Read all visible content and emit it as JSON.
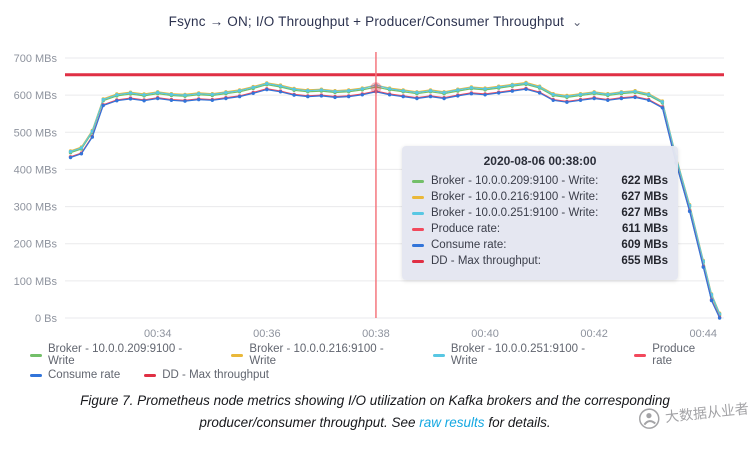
{
  "page": {
    "title": "Fsync → ON; I/O Throughput + Producer/Consumer Throughput",
    "chevron": "⌄"
  },
  "chart_data": {
    "type": "line",
    "title": "Fsync → ON; I/O Throughput + Producer/Consumer Throughput",
    "xlabel": "",
    "ylabel": "",
    "ylim": [
      0,
      700
    ],
    "grid": true,
    "legend_position": "bottom",
    "y_tick_values": [
      0,
      100,
      200,
      300,
      400,
      500,
      600,
      700
    ],
    "y_tick_labels": [
      "0 Bs",
      "100 MBs",
      "200 MBs",
      "300 MBs",
      "400 MBs",
      "500 MBs",
      "600 MBs",
      "700 MBs"
    ],
    "x_tick_values": [
      34,
      36,
      38,
      40,
      42,
      44
    ],
    "x_tick_labels": [
      "00:34",
      "00:36",
      "00:38",
      "00:40",
      "00:42",
      "00:44"
    ],
    "x_unit": "time HH:MM",
    "x_minutes": [
      32.4,
      32.6,
      32.8,
      33.0,
      33.25,
      33.5,
      33.75,
      34.0,
      34.25,
      34.5,
      34.75,
      35.0,
      35.25,
      35.5,
      35.75,
      36.0,
      36.25,
      36.5,
      36.75,
      37.0,
      37.25,
      37.5,
      37.75,
      38.0,
      38.25,
      38.5,
      38.75,
      39.0,
      39.25,
      39.5,
      39.75,
      40.0,
      40.25,
      40.5,
      40.75,
      41.0,
      41.25,
      41.5,
      41.75,
      42.0,
      42.25,
      42.5,
      42.75,
      43.0,
      43.25,
      43.5,
      43.75,
      44.0,
      44.15,
      44.3
    ],
    "series": [
      {
        "name": "Broker - 10.0.0.209:9100 - Write",
        "color": "#73BF69",
        "values": [
          445,
          455,
          500,
          585,
          598,
          603,
          598,
          604,
          599,
          597,
          601,
          599,
          604,
          609,
          618,
          628,
          622,
          613,
          609,
          611,
          607,
          609,
          614,
          622,
          614,
          609,
          604,
          609,
          604,
          611,
          617,
          614,
          619,
          624,
          629,
          619,
          599,
          594,
          599,
          604,
          599,
          604,
          607,
          599,
          579,
          430,
          300,
          150,
          60,
          8
        ]
      },
      {
        "name": "Broker - 10.0.0.216:9100 - Write",
        "color": "#EAB839",
        "values": [
          450,
          460,
          505,
          590,
          603,
          608,
          603,
          609,
          604,
          602,
          606,
          604,
          609,
          614,
          623,
          633,
          627,
          618,
          614,
          616,
          612,
          614,
          619,
          627,
          619,
          614,
          609,
          614,
          609,
          616,
          622,
          619,
          624,
          629,
          634,
          624,
          604,
          599,
          604,
          609,
          604,
          609,
          612,
          604,
          584,
          435,
          305,
          155,
          65,
          13
        ]
      },
      {
        "name": "Broker - 10.0.0.251:9100 - Write",
        "color": "#58C7E3",
        "values": [
          448,
          458,
          503,
          588,
          601,
          606,
          601,
          607,
          602,
          600,
          604,
          602,
          607,
          612,
          621,
          631,
          625,
          616,
          612,
          614,
          610,
          612,
          617,
          627,
          617,
          612,
          607,
          612,
          607,
          614,
          620,
          617,
          622,
          627,
          632,
          622,
          602,
          597,
          602,
          607,
          602,
          607,
          610,
          602,
          582,
          433,
          303,
          153,
          63,
          11
        ]
      },
      {
        "name": "Produce rate",
        "color": "#F2495C",
        "values": [
          434,
          444,
          489,
          574,
          587,
          592,
          587,
          593,
          588,
          586,
          590,
          588,
          593,
          598,
          607,
          617,
          611,
          602,
          598,
          600,
          596,
          598,
          603,
          611,
          603,
          598,
          593,
          598,
          593,
          600,
          606,
          603,
          608,
          613,
          618,
          608,
          588,
          583,
          588,
          593,
          588,
          593,
          596,
          588,
          568,
          419,
          289,
          139,
          49,
          2
        ]
      },
      {
        "name": "Consume rate",
        "color": "#3274D9",
        "values": [
          432,
          442,
          487,
          572,
          585,
          590,
          585,
          591,
          586,
          584,
          588,
          586,
          591,
          596,
          605,
          615,
          609,
          600,
          596,
          598,
          594,
          596,
          601,
          609,
          601,
          596,
          591,
          596,
          591,
          598,
          604,
          601,
          606,
          611,
          616,
          606,
          586,
          581,
          586,
          591,
          586,
          591,
          594,
          586,
          566,
          417,
          287,
          137,
          47,
          0
        ]
      }
    ],
    "reference_lines": [
      {
        "name": "DD - Max throughput",
        "color": "#E02F44",
        "value": 655
      }
    ],
    "crosshair": {
      "x": 38,
      "color": "#F4777F"
    },
    "hover_point": {
      "x": 38,
      "value": 620
    }
  },
  "tooltip": {
    "timestamp": "2020-08-06 00:38:00",
    "rows": [
      {
        "label": "Broker - 10.0.0.209:9100 - Write:",
        "value": "622 MBs",
        "color": "#73BF69"
      },
      {
        "label": "Broker - 10.0.0.216:9100 - Write:",
        "value": "627 MBs",
        "color": "#EAB839"
      },
      {
        "label": "Broker - 10.0.0.251:9100 - Write:",
        "value": "627 MBs",
        "color": "#58C7E3"
      },
      {
        "label": "Produce rate:",
        "value": "611 MBs",
        "color": "#F2495C"
      },
      {
        "label": "Consume rate:",
        "value": "609 MBs",
        "color": "#3274D9"
      },
      {
        "label": "DD - Max throughput:",
        "value": "655 MBs",
        "color": "#E02F44"
      }
    ]
  },
  "legend": {
    "items": [
      {
        "label": "Broker - 10.0.0.209:9100 - Write",
        "color": "#73BF69"
      },
      {
        "label": "Broker - 10.0.0.216:9100 - Write",
        "color": "#EAB839"
      },
      {
        "label": "Broker - 10.0.0.251:9100 - Write",
        "color": "#58C7E3"
      },
      {
        "label": "Produce rate",
        "color": "#F2495C"
      },
      {
        "label": "Consume rate",
        "color": "#3274D9"
      },
      {
        "label": "DD - Max throughput",
        "color": "#E02F44"
      }
    ]
  },
  "caption": {
    "text_before_link": "Figure 7. Prometheus node metrics showing I/O utilization on Kafka brokers and the corresponding producer/consumer throughput. See ",
    "link_text": "raw results",
    "text_after_link": " for details.",
    "link_color": "#14a8e2"
  },
  "watermark": {
    "text": "大数据从业者"
  }
}
